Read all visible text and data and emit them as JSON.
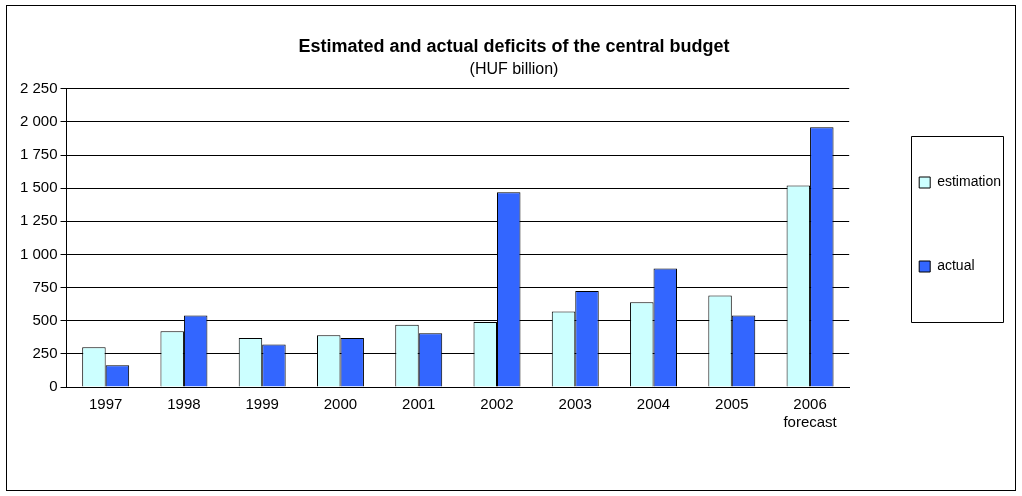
{
  "chart_data": {
    "type": "bar",
    "title": "Estimated and actual deficits of the central budget",
    "subtitle": "(HUF billion)",
    "categories": [
      "1997",
      "1998",
      "1999",
      "2000",
      "2001",
      "2002",
      "2003",
      "2004",
      "2005",
      "2006\nforecast"
    ],
    "series": [
      {
        "name": "estimation",
        "color": "#ccffff",
        "values": [
          300,
          420,
          370,
          390,
          470,
          490,
          570,
          640,
          690,
          1520
        ]
      },
      {
        "name": "actual",
        "color": "#3366ff",
        "values": [
          165,
          540,
          320,
          370,
          405,
          1470,
          725,
          895,
          540,
          1960
        ]
      }
    ],
    "ylim": [
      0,
      2250
    ],
    "yticks": [
      0,
      250,
      500,
      750,
      1000,
      1250,
      1500,
      1750,
      2000,
      2250
    ],
    "grid": "y",
    "legend": "right"
  }
}
